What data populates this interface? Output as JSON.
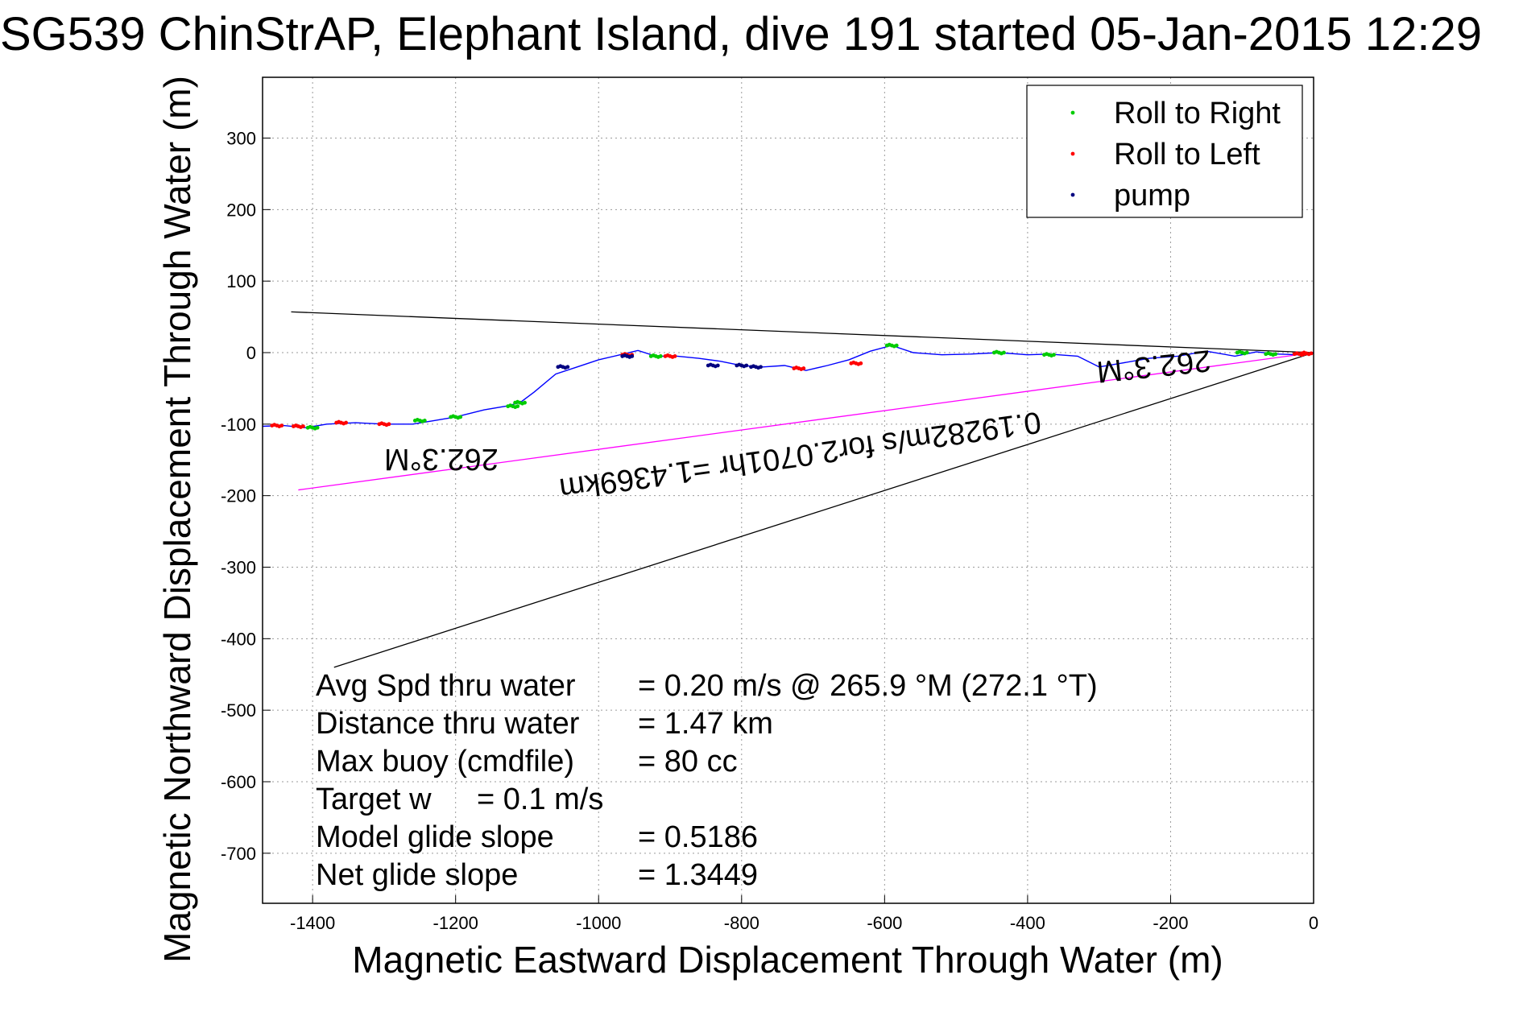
{
  "chart_data": {
    "type": "line",
    "title": "SG539 ChinStrAP, Elephant Island, dive 191 started 05-Jan-2015 12:29",
    "xlabel": "Magnetic Eastward Displacement Through Water (m)",
    "ylabel": "Magnetic Northward Displacement Through Water (m)",
    "xlim": [
      -1470,
      0
    ],
    "ylim": [
      -770,
      385
    ],
    "xticks": [
      -1400,
      -1200,
      -1000,
      -800,
      -600,
      -400,
      -200,
      0
    ],
    "yticks": [
      300,
      200,
      100,
      0,
      -100,
      -200,
      -300,
      -400,
      -500,
      -600,
      -700
    ],
    "grid": true,
    "legend_position": "top-right",
    "legend": [
      {
        "label": "Roll to Right",
        "color": "#00cc00"
      },
      {
        "label": "Roll to Left",
        "color": "#ff0000"
      },
      {
        "label": "pump",
        "color": "#000080"
      }
    ],
    "track": {
      "color": "#0000ff",
      "x": [
        0,
        -20,
        -50,
        -80,
        -110,
        -150,
        -190,
        -230,
        -270,
        -300,
        -330,
        -370,
        -400,
        -440,
        -480,
        -520,
        -560,
        -590,
        -620,
        -650,
        -680,
        -710,
        -740,
        -770,
        -800,
        -830,
        -860,
        -890,
        -920,
        -945,
        -970,
        -1000,
        -1030,
        -1060,
        -1090,
        -1110,
        -1130,
        -1160,
        -1200,
        -1230,
        -1260,
        -1300,
        -1340,
        -1380,
        -1410,
        -1440,
        -1470
      ],
      "y": [
        0,
        -3,
        -2,
        1,
        -5,
        2,
        -5,
        -8,
        -15,
        -20,
        -5,
        -2,
        -3,
        0,
        -2,
        -3,
        0,
        10,
        2,
        -10,
        -18,
        -25,
        -18,
        -20,
        -18,
        -12,
        -8,
        -5,
        -5,
        3,
        -3,
        -10,
        -20,
        -30,
        -55,
        -70,
        -75,
        -80,
        -90,
        -95,
        -100,
        -100,
        -98,
        -100,
        -105,
        -102,
        -103
      ]
    },
    "roll_right_x": [
      -1400,
      -1250,
      -1200,
      -1110,
      -1120,
      -920,
      -590,
      -440,
      -370,
      -100,
      -60
    ],
    "roll_right_y": [
      -105,
      -95,
      -90,
      -70,
      -75,
      -5,
      10,
      0,
      -3,
      0,
      -2
    ],
    "roll_left_x": [
      -1450,
      -1420,
      -1360,
      -1300,
      -960,
      -900,
      -720,
      -640,
      -10,
      -20
    ],
    "roll_left_y": [
      -102,
      -103,
      -98,
      -100,
      -3,
      -5,
      -22,
      -15,
      -1,
      -2
    ],
    "pump_x": [
      -1050,
      -960,
      -840,
      -800,
      -780
    ],
    "pump_y": [
      -20,
      -5,
      -18,
      -18,
      -20
    ],
    "heading_lines": [
      {
        "color": "#000000",
        "x": [
          0,
          -1430
        ],
        "y": [
          0,
          57
        ]
      },
      {
        "color": "#000000",
        "x": [
          0,
          -1370
        ],
        "y": [
          0,
          -440
        ]
      },
      {
        "color": "#ff00ff",
        "x": [
          0,
          -1420
        ],
        "y": [
          0,
          -192
        ]
      }
    ],
    "annotations": [
      {
        "text": "262.3°M",
        "x": -1220,
        "y": -135,
        "rotation": 180
      },
      {
        "text": "0.19282m/s for2.0701hr =1.4369km",
        "x": -720,
        "y": -130,
        "rotation": 172
      },
      {
        "text": "262.3°M",
        "x": -225,
        "y": -5,
        "rotation": 174
      }
    ],
    "stats": [
      {
        "label": "Avg Spd thru water",
        "value": "=  0.20 m/s @ 265.9 °M (272.1 °T)"
      },
      {
        "label": "Distance thru water",
        "value": "=  1.47 km"
      },
      {
        "label": "Max buoy (cmdfile)",
        "value": "= 80 cc"
      },
      {
        "label": "Target w",
        "value": "= 0.1 m/s"
      },
      {
        "label": "Model glide slope",
        "value": "= 0.5186"
      },
      {
        "label": "Net glide slope",
        "value": "= 1.3449"
      }
    ]
  }
}
